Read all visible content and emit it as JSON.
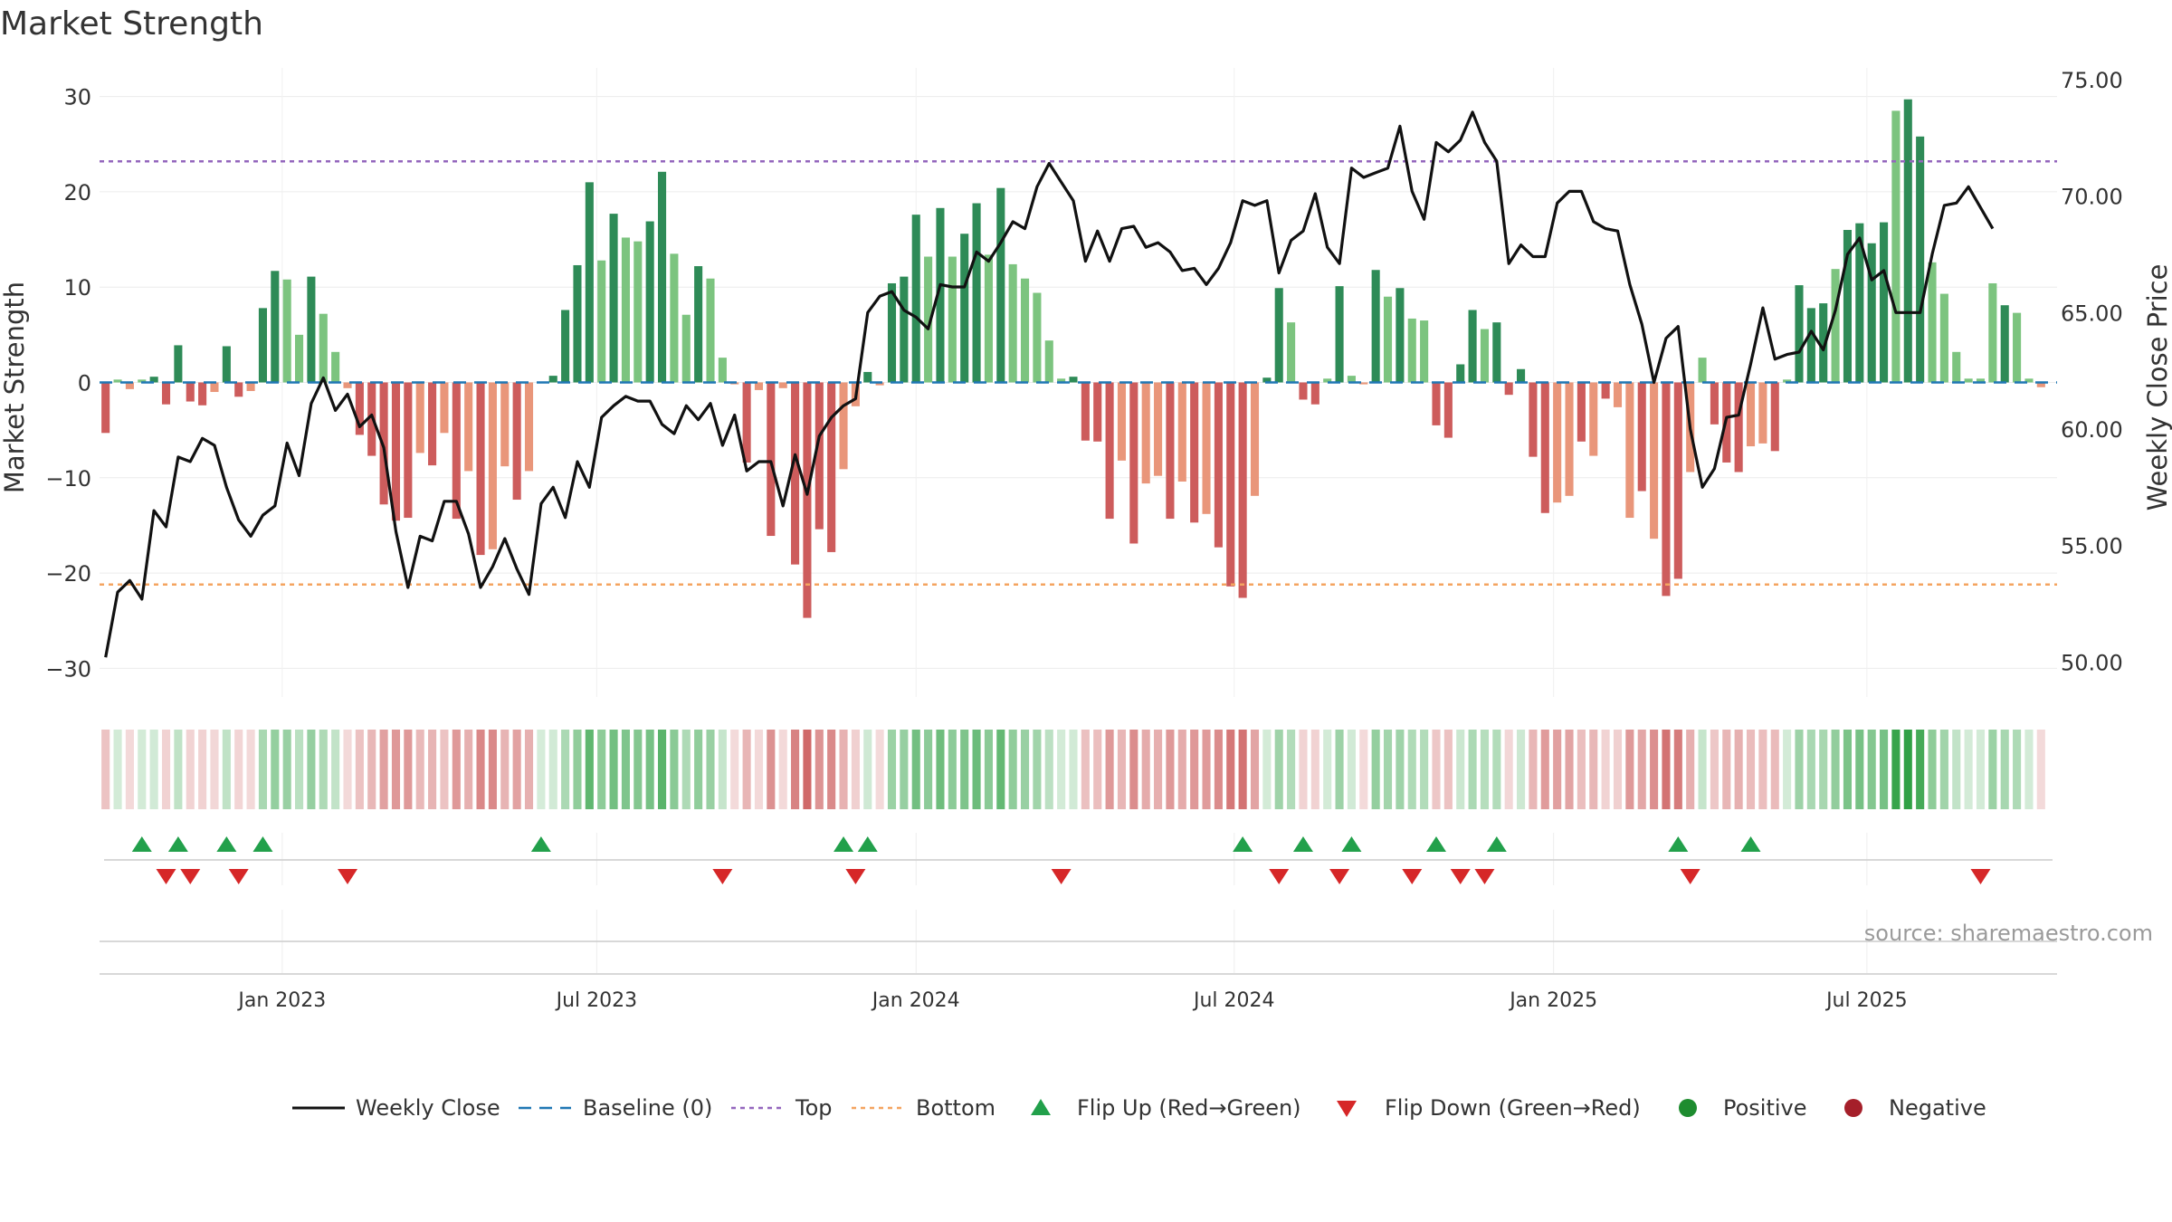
{
  "title": "Market Strength",
  "source_text": "source: sharemaestro.com",
  "colors": {
    "strong_green": "#2e8b57",
    "light_green": "#7cc47f",
    "strong_red": "#cd5c5c",
    "light_red": "#e9967a",
    "line": "#111111",
    "baseline": "#1f77b4",
    "top": "#9467bd",
    "bottom": "#f4a460",
    "flip_up": "#22a04b",
    "flip_down": "#d62728",
    "positive": "#1e8c2f",
    "negative": "#a51f2a"
  },
  "legend": [
    {
      "key": "line",
      "label": "Weekly Close"
    },
    {
      "key": "baseline",
      "label": "Baseline (0)"
    },
    {
      "key": "top",
      "label": "Top"
    },
    {
      "key": "bottom",
      "label": "Bottom"
    },
    {
      "key": "flip_up",
      "label": "Flip Up (Red→Green)"
    },
    {
      "key": "flip_down",
      "label": "Flip Down (Green→Red)"
    },
    {
      "key": "positive",
      "label": "Positive"
    },
    {
      "key": "negative",
      "label": "Negative"
    }
  ],
  "chart_data": {
    "type": "bar",
    "title": "Market Strength",
    "ylabel": "Market Strength",
    "y2label": "Weekly Close Price",
    "ylim": [
      -33,
      33
    ],
    "y2lim": [
      48.5,
      75.5
    ],
    "yticks": [
      30,
      20,
      10,
      0,
      -10,
      -20,
      -30
    ],
    "y2ticks": [
      "75.00",
      "70.00",
      "65.00",
      "60.00",
      "55.00",
      "50.00"
    ],
    "y2tick_values": [
      75,
      70,
      65,
      60,
      55,
      50
    ],
    "xticks": [
      {
        "label": "Jan 2023",
        "week": 14.6
      },
      {
        "label": "Jul 2023",
        "week": 40.6
      },
      {
        "label": "Jan 2024",
        "week": 67
      },
      {
        "label": "Jul 2024",
        "week": 93.3
      },
      {
        "label": "Jan 2025",
        "week": 119.7
      },
      {
        "label": "Jul 2025",
        "week": 145.6
      }
    ],
    "top_line": 23.2,
    "bottom_line": -21.2,
    "bars": [
      -5.3,
      0.3,
      -0.7,
      0.3,
      0.6,
      -2.3,
      3.9,
      -2,
      -2.4,
      -1,
      3.8,
      -1.5,
      -0.9,
      7.8,
      11.7,
      10.8,
      5,
      11.1,
      7.2,
      3.2,
      -0.6,
      -5.5,
      -7.7,
      -12.8,
      -14.5,
      -14.2,
      -7.4,
      -8.7,
      -5.3,
      -14.3,
      -9.3,
      -18.1,
      -17.5,
      -8.8,
      -12.3,
      -9.3,
      0,
      0.7,
      7.6,
      12.3,
      21,
      12.8,
      17.7,
      15.2,
      14.8,
      16.9,
      22.1,
      13.5,
      7.1,
      12.2,
      10.9,
      2.6,
      -0.2,
      -8.4,
      -0.8,
      -16.1,
      -0.6,
      -19.1,
      -24.7,
      -15.4,
      -17.8,
      -9.1,
      -2.5,
      1.1,
      -0.3,
      10.4,
      11.1,
      17.6,
      13.2,
      18.3,
      13.2,
      15.6,
      18.8,
      13.4,
      20.4,
      12.4,
      10.9,
      9.4,
      4.4,
      0.4,
      0.6,
      -6.1,
      -6.2,
      -14.3,
      -8.2,
      -16.9,
      -10.6,
      -9.8,
      -14.3,
      -10.4,
      -14.7,
      -13.8,
      -17.3,
      -21.4,
      -22.6,
      -11.9,
      0.5,
      9.9,
      6.3,
      -1.8,
      -2.3,
      0.4,
      10.1,
      0.7,
      -0.2,
      11.8,
      9,
      9.9,
      6.7,
      6.5,
      -4.5,
      -5.8,
      1.9,
      7.6,
      5.6,
      6.3,
      -1.3,
      1.4,
      -7.8,
      -13.7,
      -12.6,
      -11.9,
      -6.2,
      -7.7,
      -1.7,
      -2.6,
      -14.2,
      -11.4,
      -16.4,
      -22.4,
      -20.6,
      -9.4,
      2.6,
      -4.4,
      -8.4,
      -9.4,
      -6.7,
      -6.4,
      -7.2,
      0.3,
      10.2,
      7.8,
      8.3,
      11.9,
      16,
      16.7,
      14.6,
      16.8,
      28.5,
      29.7,
      25.8,
      12.6,
      9.3,
      3.2,
      0.4,
      0.4,
      10.4,
      8.1,
      7.3,
      0.4,
      -0.5
    ],
    "bar_shade": [
      "D",
      "L",
      "L",
      "L",
      "D",
      "D",
      "D",
      "D",
      "D",
      "L",
      "D",
      "D",
      "L",
      "D",
      "D",
      "L",
      "L",
      "D",
      "L",
      "L",
      "L",
      "D",
      "D",
      "D",
      "D",
      "D",
      "L",
      "D",
      "L",
      "D",
      "L",
      "D",
      "L",
      "L",
      "D",
      "L",
      "L",
      "D",
      "D",
      "D",
      "D",
      "L",
      "D",
      "L",
      "L",
      "D",
      "D",
      "L",
      "L",
      "D",
      "L",
      "L",
      "L",
      "D",
      "L",
      "D",
      "L",
      "D",
      "D",
      "D",
      "D",
      "L",
      "L",
      "D",
      "L",
      "D",
      "D",
      "D",
      "L",
      "D",
      "L",
      "D",
      "D",
      "L",
      "D",
      "L",
      "L",
      "L",
      "L",
      "L",
      "D",
      "D",
      "D",
      "D",
      "L",
      "D",
      "L",
      "L",
      "D",
      "L",
      "D",
      "L",
      "D",
      "D",
      "D",
      "L",
      "D",
      "D",
      "L",
      "D",
      "D",
      "L",
      "D",
      "L",
      "L",
      "D",
      "L",
      "D",
      "L",
      "L",
      "D",
      "D",
      "D",
      "D",
      "L",
      "D",
      "D",
      "D",
      "D",
      "D",
      "L",
      "L",
      "D",
      "L",
      "D",
      "L",
      "L",
      "D",
      "L",
      "D",
      "D",
      "L",
      "L",
      "D",
      "D",
      "D",
      "L",
      "L",
      "D",
      "L",
      "D",
      "D",
      "D",
      "L",
      "D",
      "D",
      "D",
      "D",
      "L",
      "D",
      "D",
      "L",
      "L",
      "L",
      "L",
      "L",
      "L",
      "D",
      "L",
      "L",
      "L",
      "L"
    ],
    "weekly_close": [
      50.2,
      53.0,
      53.5,
      52.7,
      56.5,
      55.8,
      58.8,
      58.6,
      59.6,
      59.3,
      57.5,
      56.1,
      55.4,
      56.3,
      56.7,
      59.4,
      58.0,
      61.1,
      62.2,
      60.8,
      61.5,
      60.1,
      60.6,
      59.2,
      55.6,
      53.2,
      55.4,
      55.2,
      56.9,
      56.9,
      55.5,
      53.2,
      54.1,
      55.3,
      54.0,
      52.9,
      56.8,
      57.5,
      56.2,
      58.6,
      57.5,
      60.5,
      61.0,
      61.4,
      61.2,
      61.2,
      60.2,
      59.8,
      61.0,
      60.4,
      61.1,
      59.3,
      60.6,
      58.2,
      58.6,
      58.6,
      56.7,
      58.9,
      57.2,
      59.7,
      60.5,
      61.0,
      61.3,
      65.0,
      65.7,
      65.9,
      65.1,
      64.8,
      64.3,
      66.2,
      66.1,
      66.1,
      67.6,
      67.2,
      68.0,
      68.9,
      68.6,
      70.4,
      71.4,
      70.6,
      69.8,
      67.2,
      68.5,
      67.2,
      68.6,
      68.7,
      67.8,
      68.0,
      67.6,
      66.8,
      66.9,
      66.2,
      66.9,
      68.0,
      69.8,
      69.6,
      69.8,
      66.7,
      68.1,
      68.5,
      70.1,
      67.8,
      67.1,
      71.2,
      70.8,
      71.0,
      71.2,
      73.0,
      70.2,
      69.0,
      72.3,
      71.9,
      72.4,
      73.6,
      72.3,
      71.5,
      67.1,
      67.9,
      67.4,
      67.4,
      69.7,
      70.2,
      70.2,
      68.9,
      68.6,
      68.5,
      66.2,
      64.5,
      62.0,
      63.9,
      64.4,
      60.0,
      57.5,
      58.3,
      60.5,
      60.6,
      62.8,
      65.2,
      63.0,
      63.2,
      63.3,
      64.2,
      63.4,
      65.1,
      67.5,
      68.2,
      66.4,
      66.8,
      65.0,
      65.0,
      65.0,
      67.5,
      69.6,
      69.7,
      70.4,
      69.5,
      68.6
    ],
    "flip_up_weeks": [
      3,
      6,
      10,
      13,
      36,
      61,
      63,
      94,
      99,
      103,
      110,
      115,
      130,
      136
    ],
    "flip_down_weeks": [
      5,
      7,
      11,
      20,
      51,
      62,
      79,
      97,
      102,
      108,
      112,
      114,
      131,
      155
    ]
  }
}
